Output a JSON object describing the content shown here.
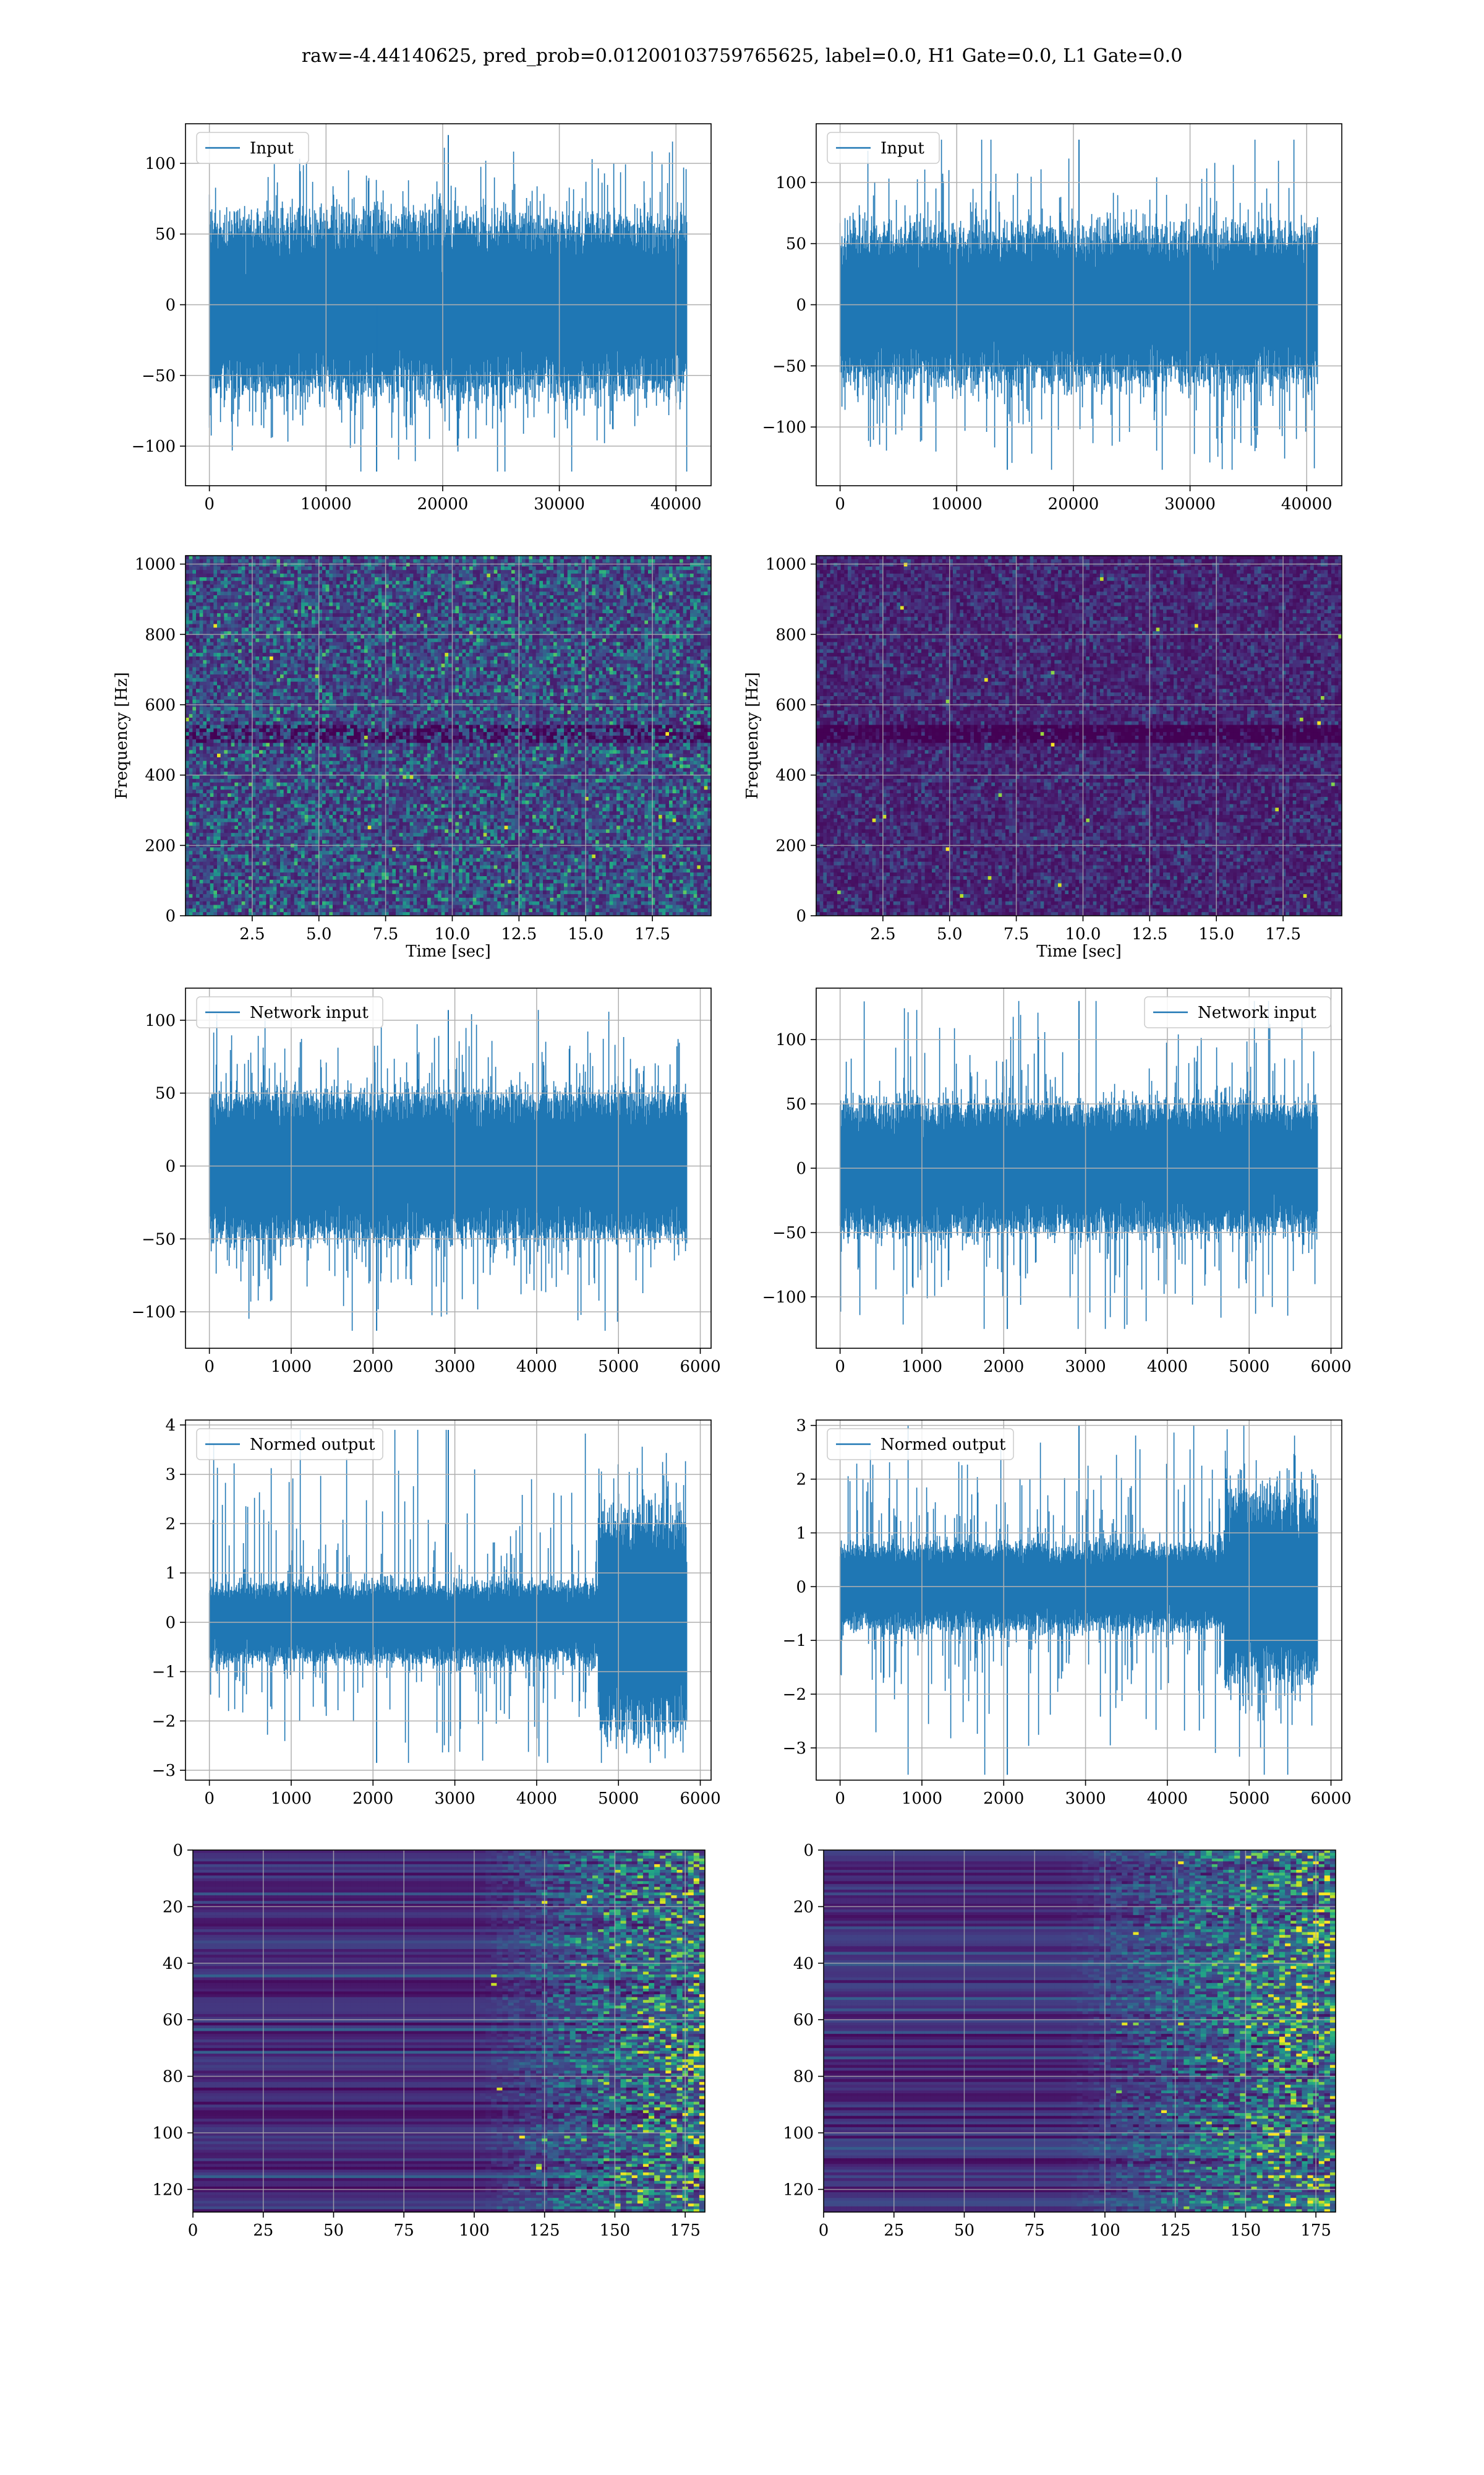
{
  "figure": {
    "title": "raw=-4.44140625, pred_prob=0.01200103759765625, label=0.0, H1 Gate=0.0, L1 Gate=0.0"
  },
  "colors": {
    "line": "#1f77b4",
    "grid": "#b0b0b0",
    "viridis": [
      "#440154",
      "#482475",
      "#414487",
      "#355f8d",
      "#2a788e",
      "#21918c",
      "#22a884",
      "#44bf70",
      "#7ad151",
      "#bddf26",
      "#fde725"
    ]
  },
  "chart_data": [
    {
      "id": "input-h1",
      "type": "line",
      "legend": "Input",
      "legend_loc": "upper left",
      "grid": true,
      "n_points": 40960,
      "xlim": [
        -2048,
        43008
      ],
      "ylim": [
        -128,
        128
      ],
      "xticks": [
        0,
        10000,
        20000,
        30000,
        40000
      ],
      "yticks": [
        -100,
        -50,
        0,
        50,
        100
      ],
      "envelope": {
        "core": 55,
        "spike_max": 120,
        "spike_min": -118
      }
    },
    {
      "id": "input-l1",
      "type": "line",
      "legend": "Input",
      "legend_loc": "upper left",
      "grid": true,
      "n_points": 40960,
      "xlim": [
        -2048,
        43008
      ],
      "ylim": [
        -148,
        148
      ],
      "xticks": [
        0,
        10000,
        20000,
        30000,
        40000
      ],
      "yticks": [
        -100,
        -50,
        0,
        50,
        100
      ],
      "envelope": {
        "core": 55,
        "spike_max": 135,
        "spike_min": -135
      }
    },
    {
      "id": "spec-h1",
      "type": "heatmap",
      "grid": true,
      "xlabel": "Time [sec]",
      "ylabel": "Frequency [Hz]",
      "xlim": [
        0,
        19.7
      ],
      "ylim": [
        0,
        1024
      ],
      "xticks": [
        2.5,
        5.0,
        7.5,
        10.0,
        12.5,
        15.0,
        17.5
      ],
      "yticks": [
        0,
        200,
        400,
        600,
        800,
        1000
      ],
      "level": 0.22
    },
    {
      "id": "spec-l1",
      "type": "heatmap",
      "grid": true,
      "xlabel": "Time [sec]",
      "ylabel": "Frequency [Hz]",
      "xlim": [
        0,
        19.7
      ],
      "ylim": [
        0,
        1024
      ],
      "xticks": [
        2.5,
        5.0,
        7.5,
        10.0,
        12.5,
        15.0,
        17.5
      ],
      "yticks": [
        0,
        200,
        400,
        600,
        800,
        1000
      ],
      "level": 0.1
    },
    {
      "id": "network-input-h1",
      "type": "line",
      "legend": "Network input",
      "legend_loc": "upper left",
      "grid": true,
      "n_points": 5840,
      "xlim": [
        -292,
        6132
      ],
      "ylim": [
        -125,
        122
      ],
      "xticks": [
        0,
        1000,
        2000,
        3000,
        4000,
        5000,
        6000
      ],
      "yticks": [
        -100,
        -50,
        0,
        50,
        100
      ],
      "envelope": {
        "core": 45,
        "spike_max": 107,
        "spike_min": -113
      }
    },
    {
      "id": "network-input-l1",
      "type": "line",
      "legend": "Network input",
      "legend_loc": "upper right",
      "grid": true,
      "n_points": 5840,
      "xlim": [
        -292,
        6132
      ],
      "ylim": [
        -140,
        140
      ],
      "xticks": [
        0,
        1000,
        2000,
        3000,
        4000,
        5000,
        6000
      ],
      "yticks": [
        -100,
        -50,
        0,
        50,
        100
      ],
      "envelope": {
        "core": 45,
        "spike_max": 130,
        "spike_min": -125
      }
    },
    {
      "id": "normed-output-h1",
      "type": "line",
      "legend": "Normed output",
      "legend_loc": "upper left",
      "grid": true,
      "n_points": 5840,
      "xlim": [
        -292,
        6132
      ],
      "ylim": [
        -3.2,
        4.1
      ],
      "xticks": [
        0,
        1000,
        2000,
        3000,
        4000,
        5000,
        6000
      ],
      "yticks": [
        -3,
        -2,
        -1,
        0,
        1,
        2,
        3,
        4
      ],
      "envelope": {
        "core": 0.7,
        "burst_start": 4750,
        "burst_core": 2.0,
        "spike_max": 3.9,
        "spike_min": -2.85
      }
    },
    {
      "id": "normed-output-l1",
      "type": "line",
      "legend": "Normed output",
      "legend_loc": "upper left",
      "grid": true,
      "n_points": 5840,
      "xlim": [
        -292,
        6132
      ],
      "ylim": [
        -3.6,
        3.1
      ],
      "xticks": [
        0,
        1000,
        2000,
        3000,
        4000,
        5000,
        6000
      ],
      "yticks": [
        -3,
        -2,
        -1,
        0,
        1,
        2,
        3
      ],
      "envelope": {
        "core": 0.7,
        "burst_start": 4700,
        "burst_core": 1.6,
        "spike_max": 3.0,
        "spike_min": -3.5
      }
    },
    {
      "id": "feature-map-h1",
      "type": "heatmap",
      "grid": true,
      "xlim": [
        0,
        182
      ],
      "ylim": [
        128,
        0
      ],
      "rows": 128,
      "cols": 182,
      "xticks": [
        0,
        25,
        50,
        75,
        100,
        125,
        150,
        175
      ],
      "yticks": [
        0,
        20,
        40,
        60,
        80,
        100,
        120
      ],
      "activity_onset": 100
    },
    {
      "id": "feature-map-l1",
      "type": "heatmap",
      "grid": true,
      "xlim": [
        0,
        182
      ],
      "ylim": [
        128,
        0
      ],
      "rows": 128,
      "cols": 182,
      "xticks": [
        0,
        25,
        50,
        75,
        100,
        125,
        150,
        175
      ],
      "yticks": [
        0,
        20,
        40,
        60,
        80,
        100,
        120
      ],
      "activity_onset": 85
    }
  ]
}
